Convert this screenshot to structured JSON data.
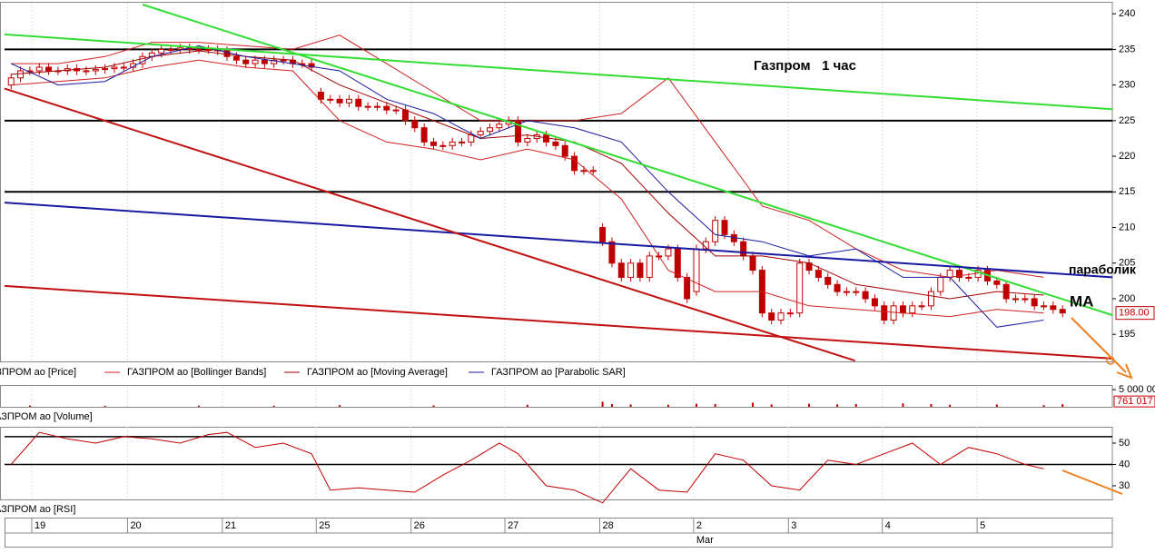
{
  "chart_data": [
    {
      "type": "candlestick",
      "xlim": [
        -0.7,
        117.3
      ],
      "ylim": [
        191.2,
        241.3
      ],
      "yticks": [
        195,
        200,
        205,
        210,
        215,
        220,
        225,
        230,
        235,
        240
      ],
      "series": [
        {
          "name": "АЗПРОМ ао [Price]",
          "color": "#c00000",
          "x": [
            0,
            1,
            2,
            3,
            4,
            5,
            6,
            7,
            8,
            9,
            10,
            11,
            12,
            13,
            14,
            15,
            16,
            17,
            18,
            19,
            20,
            21,
            22,
            23,
            24,
            25,
            26,
            27,
            28,
            29,
            30,
            31,
            32,
            33,
            34,
            35,
            36,
            37,
            38,
            39,
            40,
            41,
            42,
            43,
            44,
            45,
            46,
            47,
            48,
            49,
            50,
            51,
            52,
            53,
            54,
            55,
            56,
            57,
            58,
            59,
            60,
            61,
            62,
            63,
            64,
            65,
            66,
            67,
            68,
            69,
            70,
            71,
            72,
            73,
            74,
            75,
            76,
            77,
            78,
            79,
            80,
            81,
            82,
            83,
            84,
            85,
            86,
            87,
            88,
            89,
            90,
            91,
            92,
            93,
            94,
            95,
            96,
            97,
            98,
            99,
            100,
            101,
            102,
            103,
            104,
            105,
            106,
            107,
            108,
            109,
            110,
            111,
            112
          ],
          "open": [
            230,
            231,
            232,
            232,
            232.5,
            232,
            232,
            232.3,
            232,
            232,
            232.2,
            232.3,
            232.5,
            232.5,
            233,
            234,
            234.5,
            235,
            235,
            235.2,
            235,
            235,
            235,
            234.8,
            234,
            233.5,
            233,
            233.5,
            233,
            233.5,
            233.5,
            233,
            233,
            229,
            228,
            228,
            227.5,
            228,
            227,
            227,
            227,
            226.5,
            226.5,
            225,
            224,
            222,
            221.5,
            221.5,
            222,
            222,
            223,
            223.5,
            224,
            224.5,
            225,
            222,
            222.5,
            223,
            222,
            221.5,
            220,
            218,
            218,
            210,
            208,
            205,
            203,
            205,
            203,
            206,
            206,
            207,
            203,
            201,
            207,
            208,
            211,
            209,
            208,
            206,
            204,
            198,
            197,
            198,
            198,
            205,
            204,
            203,
            202,
            201,
            201,
            201,
            200,
            199,
            197,
            199,
            198,
            199,
            199,
            201,
            203,
            204,
            203,
            203,
            204,
            202.5,
            202,
            200,
            200,
            200,
            199,
            199,
            198.5
          ],
          "high": [
            231.6,
            232.6,
            232.6,
            233.1,
            233.1,
            232.6,
            232.9,
            232.9,
            232.6,
            232.8,
            232.9,
            233.1,
            233.1,
            233.6,
            234.6,
            235.1,
            235.6,
            235.6,
            235.8,
            235.8,
            235.6,
            235.6,
            235.6,
            235.4,
            234.6,
            234.1,
            234.1,
            234.1,
            234.1,
            234.1,
            234.1,
            233.6,
            233.6,
            229.6,
            228.6,
            228.6,
            228.6,
            228.6,
            227.6,
            227.6,
            227.6,
            227.1,
            227.1,
            225.6,
            224.6,
            222.6,
            222.1,
            222.6,
            222.6,
            223.6,
            224.1,
            224.6,
            225.1,
            225.6,
            225.6,
            223.1,
            223.6,
            223.6,
            222.6,
            222.1,
            220.6,
            218.6,
            218.6,
            210.6,
            208.6,
            205.6,
            205.6,
            205.6,
            206.6,
            206.6,
            207.6,
            207.6,
            203.6,
            207.6,
            208.6,
            211.6,
            211.6,
            209.6,
            208.6,
            206.6,
            204.6,
            198.6,
            198.6,
            198.6,
            205.6,
            205.6,
            204.6,
            203.6,
            202.6,
            201.6,
            201.6,
            201.6,
            200.6,
            199.6,
            199.6,
            199.6,
            199.6,
            199.6,
            201.6,
            203.6,
            204.6,
            204.6,
            203.6,
            204.6,
            204.6,
            203.1,
            202.6,
            200.6,
            200.6,
            200.6,
            199.6,
            199.6,
            199.1
          ],
          "low": [
            229.4,
            230.4,
            231.4,
            231.4,
            231.4,
            231.4,
            231.4,
            231.4,
            231.4,
            231.4,
            231.6,
            231.7,
            231.9,
            231.9,
            232.4,
            233.4,
            233.9,
            234.4,
            234.4,
            234.4,
            234.4,
            234.4,
            234.2,
            233.4,
            232.9,
            232.4,
            232.4,
            232.4,
            232.4,
            232.9,
            232.4,
            232.4,
            231.9,
            227.4,
            227.4,
            226.9,
            226.9,
            226.4,
            226.4,
            226.4,
            225.9,
            225.9,
            224.4,
            223.4,
            221.4,
            220.9,
            220.9,
            220.9,
            221.4,
            221.4,
            222.4,
            222.9,
            223.4,
            223.9,
            221.4,
            221.4,
            221.9,
            221.4,
            220.9,
            219.4,
            217.4,
            217.4,
            217.4,
            207.4,
            204.4,
            202.4,
            202.4,
            202.4,
            202.4,
            205.4,
            205.4,
            202.4,
            199.4,
            200.4,
            206.4,
            207.4,
            208.4,
            207.4,
            205.4,
            203.4,
            197.4,
            196.4,
            196.4,
            197.4,
            197.4,
            203.4,
            202.4,
            201.4,
            200.4,
            200.4,
            200.4,
            199.4,
            198.4,
            196.4,
            196.4,
            197.4,
            197.4,
            198.4,
            198.4,
            200.4,
            202.4,
            202.4,
            202.4,
            202.4,
            201.9,
            201.4,
            199.4,
            199.4,
            199.4,
            198.4,
            198.4,
            197.9,
            197.4
          ],
          "close": [
            231,
            232,
            232,
            232.5,
            232,
            232,
            232.3,
            232,
            232,
            232.2,
            232.3,
            232.5,
            232.5,
            233,
            234,
            234.5,
            235,
            235,
            235.2,
            235,
            235,
            235,
            234.8,
            234,
            233.5,
            233,
            233.5,
            233,
            233.5,
            233.5,
            233,
            233,
            232.5,
            228,
            228,
            227.5,
            228,
            227,
            227,
            227,
            226.5,
            226.5,
            225,
            224,
            222,
            221.5,
            221.5,
            222,
            222,
            223,
            223.5,
            224,
            224.5,
            225,
            222,
            222.5,
            223,
            222,
            221.5,
            220,
            218,
            218,
            218,
            208,
            205,
            203,
            205,
            203,
            206,
            206,
            207,
            203,
            200,
            207,
            208,
            211,
            209,
            208,
            206,
            204,
            198,
            197,
            198,
            198,
            205,
            204,
            203,
            202,
            201,
            201,
            201,
            200,
            199,
            197,
            199,
            198,
            199,
            199,
            201,
            203,
            204,
            203,
            203,
            204,
            202.5,
            202,
            200,
            200,
            200,
            199,
            199,
            198.5,
            198
          ]
        },
        {
          "name": "ГАЗПРОМ ао [Bollinger Bands]",
          "color": "#d02020",
          "x": [
            0,
            5,
            10,
            15,
            20,
            25,
            30,
            35,
            40,
            45,
            50,
            55,
            60,
            65,
            70,
            75,
            80,
            85,
            90,
            95,
            100,
            105,
            110
          ],
          "upper": [
            233,
            233,
            234,
            236,
            236,
            235.5,
            235,
            237,
            233,
            229,
            225,
            225,
            225,
            226,
            231,
            222,
            213,
            211,
            207,
            204,
            203,
            204,
            203
          ],
          "lower": [
            230,
            230.5,
            231,
            232.5,
            233.5,
            232.5,
            232,
            225,
            222,
            221,
            219.5,
            221,
            219.5,
            214,
            204,
            201,
            201,
            199,
            198.5,
            198,
            197.5,
            198.5,
            198
          ]
        },
        {
          "name": "ГАЗПРОМ ао [Moving Average]",
          "color": "#a00000",
          "x": [
            0,
            5,
            10,
            15,
            20,
            25,
            30,
            35,
            40,
            45,
            50,
            55,
            60,
            65,
            70,
            75,
            80,
            85,
            90,
            95,
            100,
            105,
            110
          ],
          "values": [
            231.5,
            232,
            232.5,
            234,
            234.8,
            234,
            233.5,
            230,
            227.5,
            225,
            222.5,
            223,
            222,
            219,
            212,
            206,
            206,
            205,
            202,
            201,
            200,
            201,
            200.5
          ]
        },
        {
          "name": "ГАЗПРОМ ао [Parabolic SAR]",
          "color": "#1a1aa0",
          "x": [
            0,
            5,
            10,
            15,
            20,
            25,
            30,
            35,
            40,
            45,
            50,
            55,
            60,
            65,
            70,
            75,
            80,
            85,
            90,
            95,
            100,
            105,
            110
          ],
          "values": [
            233,
            230,
            230.5,
            234,
            235.5,
            234,
            233,
            232,
            228,
            226,
            222.5,
            225,
            224,
            222,
            215,
            209,
            208,
            206,
            207,
            203,
            203,
            196,
            197
          ]
        }
      ],
      "trendlines": [
        {
          "color": "#33dd33",
          "x": [
            14,
            117.3
          ],
          "values": [
            241.3,
            197.7
          ]
        },
        {
          "color": "#33dd33",
          "x": [
            -0.7,
            117.3
          ],
          "values": [
            237.1,
            226.6
          ]
        },
        {
          "color": "#1a1aa0",
          "x": [
            -0.7,
            117.3
          ],
          "values": [
            213.5,
            203
          ]
        },
        {
          "color": "#c01010",
          "x": [
            -0.7,
            89.9
          ],
          "values": [
            229.5,
            191.3
          ]
        },
        {
          "color": "#c01010",
          "x": [
            -0.7,
            117.3
          ],
          "values": [
            201.8,
            191.6
          ]
        }
      ],
      "hlines": [
        235,
        225,
        215
      ],
      "last_price": {
        "value": 198,
        "label": "198.00"
      },
      "annotations": [
        "Газпром   1 час",
        "параболик",
        "MA"
      ]
    },
    {
      "type": "bar",
      "name": "АЗПРОМ ао [Volume]",
      "color": "#c00000",
      "xlim": [
        -0.7,
        117.3
      ],
      "ylim": [
        0,
        5300000
      ],
      "yticks": [
        {
          "value": 5000000,
          "label": "5 000 00"
        }
      ],
      "last_value": {
        "value": 761017,
        "label": "761 017"
      },
      "x": [
        2,
        10,
        20,
        28,
        35,
        45,
        55,
        63,
        64,
        66,
        70,
        73,
        75,
        79,
        81,
        85,
        88,
        90,
        95,
        98,
        100,
        105,
        110,
        112
      ],
      "values": [
        400000,
        300000,
        350000,
        300000,
        500000,
        400000,
        600000,
        1500000,
        800000,
        700000,
        600000,
        900000,
        800000,
        1200000,
        700000,
        900000,
        700000,
        800000,
        1000000,
        800000,
        600000,
        700000,
        500000,
        761017
      ]
    },
    {
      "type": "line",
      "name": "АЗПРОМ ао [RSI]",
      "color": "#c00000",
      "xlim": [
        -0.7,
        117.3
      ],
      "ylim": [
        23.6,
        56.8
      ],
      "yticks": [
        30,
        40,
        50
      ],
      "hlines": [
        53,
        40
      ],
      "x": [
        0,
        3,
        6,
        9,
        12,
        15,
        18,
        21,
        23,
        26,
        29,
        32,
        34,
        37,
        40,
        43,
        46,
        49,
        52,
        54,
        57,
        60,
        63,
        66,
        69,
        72,
        75,
        78,
        81,
        84,
        87,
        90,
        93,
        96,
        99,
        102,
        105,
        108,
        110
      ],
      "values": [
        40,
        55,
        52,
        50,
        53,
        52,
        50,
        54,
        55,
        48,
        50,
        45,
        28,
        29,
        28,
        27,
        35,
        42,
        50,
        45,
        30,
        28,
        22,
        38,
        28,
        27,
        45,
        42,
        30,
        28,
        42,
        40,
        45,
        50,
        40,
        48,
        45,
        40,
        38
      ],
      "xticks": [
        {
          "value": 2.2,
          "label": "19"
        },
        {
          "value": 12.4,
          "label": "20"
        },
        {
          "value": 22.5,
          "label": "21"
        },
        {
          "value": 32.5,
          "label": "25"
        },
        {
          "value": 42.6,
          "label": "26"
        },
        {
          "value": 52.6,
          "label": "27"
        },
        {
          "value": 62.7,
          "label": "28"
        },
        {
          "value": 72.7,
          "label": "2"
        },
        {
          "value": 82.8,
          "label": "3"
        },
        {
          "value": 92.8,
          "label": "4"
        },
        {
          "value": 102.9,
          "label": "5"
        }
      ],
      "x_sublabel": "Mar"
    }
  ]
}
